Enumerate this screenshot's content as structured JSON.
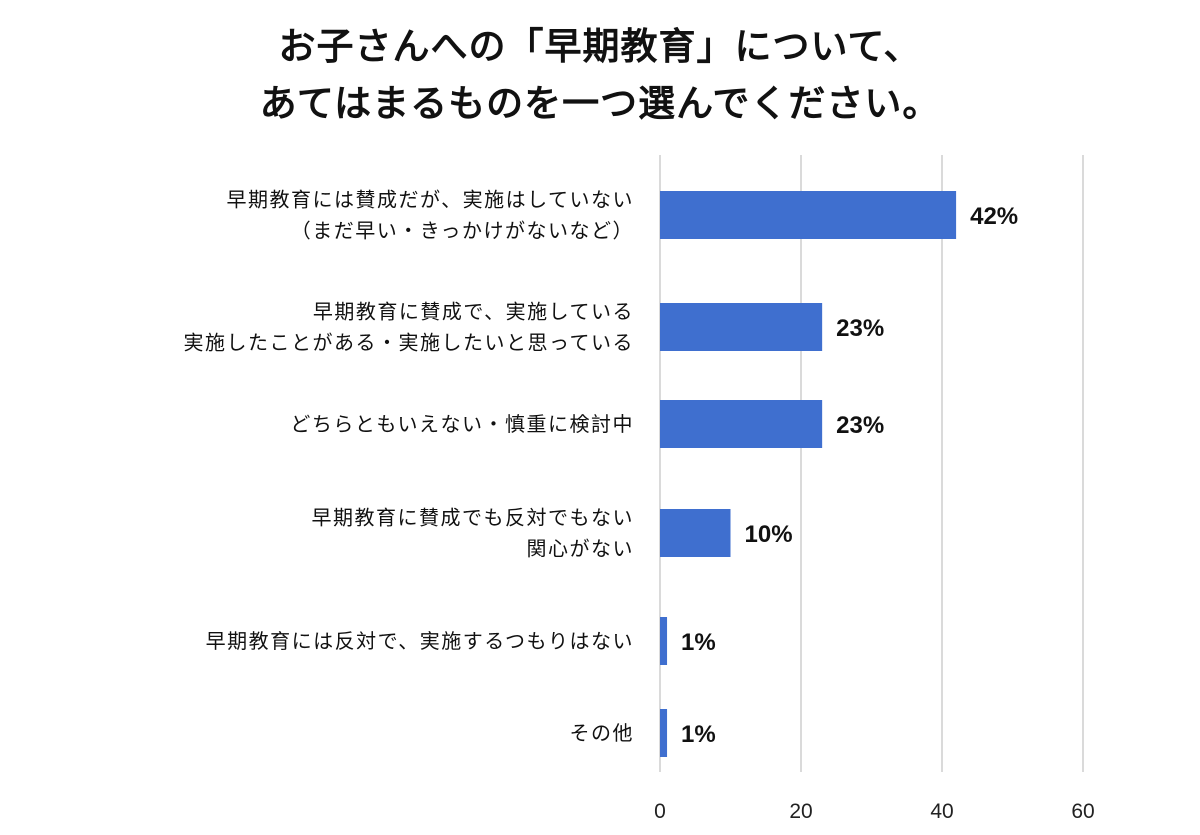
{
  "chart_data": {
    "type": "bar",
    "orientation": "horizontal",
    "title_lines": [
      "お子さんへの「早期教育」について、",
      "あてはまるものを一つ選んでください。"
    ],
    "categories": [
      [
        "早期教育には賛成だが、実施はしていない",
        "（まだ早い・きっかけがないなど）"
      ],
      [
        "早期教育に賛成で、実施している",
        "実施したことがある・実施したいと思っている"
      ],
      [
        "どちらともいえない・慎重に検討中"
      ],
      [
        "早期教育に賛成でも反対でもない",
        "関心がない"
      ],
      [
        "早期教育には反対で、実施するつもりはない"
      ],
      [
        "その他"
      ]
    ],
    "values": [
      42,
      23,
      23,
      10,
      1,
      1
    ],
    "value_labels": [
      "42%",
      "23%",
      "23%",
      "10%",
      "1%",
      "1%"
    ],
    "xlim": [
      0,
      60
    ],
    "xticks": [
      0,
      20,
      40,
      60
    ],
    "grid": true,
    "bar_color": "#3f6fcf"
  }
}
